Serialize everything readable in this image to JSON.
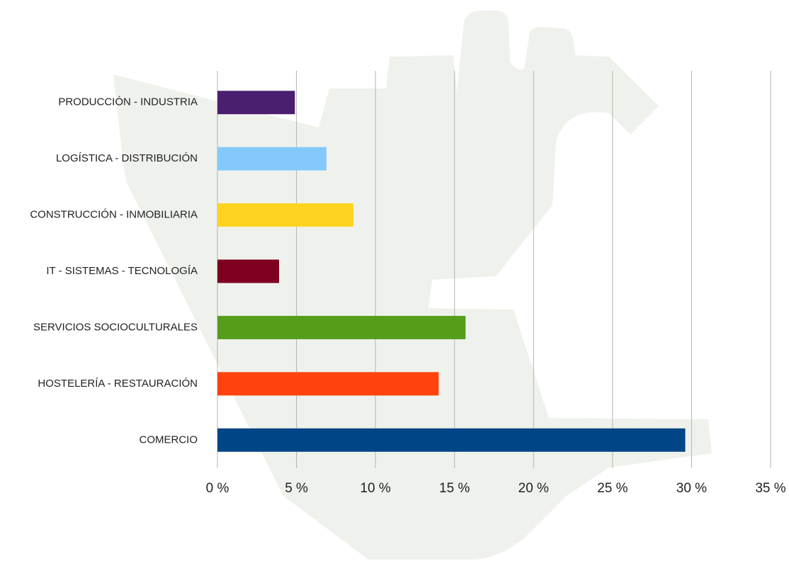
{
  "chart_data": {
    "type": "bar",
    "orientation": "horizontal",
    "categories": [
      "PRODUCCIÓN - INDUSTRIA",
      "LOGÍSTICA - DISTRIBUCIÓN",
      "CONSTRUCCIÓN - INMOBILIARIA",
      "IT - SISTEMAS - TECNOLOGÍA",
      "SERVICIOS SOCIOCULTURALES",
      "HOSTELERÍA - RESTAURACIÓN",
      "COMERCIO"
    ],
    "values": [
      4.9,
      6.9,
      8.6,
      3.9,
      15.7,
      14.0,
      29.6
    ],
    "colors": [
      "#4b1f6f",
      "#84c9fb",
      "#ffd320",
      "#7e0021",
      "#579d1c",
      "#ff420e",
      "#004586"
    ],
    "xlim": [
      0,
      35
    ],
    "xticks": [
      {
        "value": 0,
        "label": "0 %"
      },
      {
        "value": 5,
        "label": "5 %"
      },
      {
        "value": 10,
        "label": "10 %"
      },
      {
        "value": 15,
        "label": "15 %"
      },
      {
        "value": 20,
        "label": "20 %"
      },
      {
        "value": 25,
        "label": "25 %"
      },
      {
        "value": 30,
        "label": "30 %"
      },
      {
        "value": 35,
        "label": "35 %"
      }
    ],
    "grid": true
  }
}
